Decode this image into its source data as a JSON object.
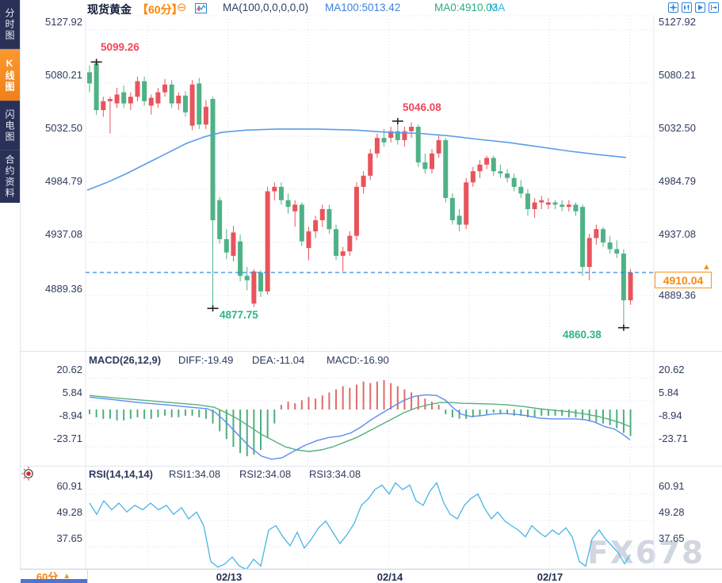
{
  "sidebar": {
    "items": [
      {
        "label": "分时图",
        "active": false
      },
      {
        "label": "K线图",
        "active": true
      },
      {
        "label": "闪电图",
        "active": false
      },
      {
        "label": "合约资料",
        "active": false
      }
    ]
  },
  "header": {
    "symbol": "现货黄金",
    "period": "【60分】",
    "collapse_icon": "⊖",
    "ma_settings": "MA(100,0,0,0,0,0)",
    "ma100": "MA100:5013.42",
    "ma0": "MA0:4910.03",
    "ma_extra": "MA"
  },
  "main_chart": {
    "axis": [
      "5127.92",
      "5080.21",
      "5032.50",
      "4984.79",
      "4937.08",
      "4889.36"
    ],
    "current_price": "4910.04",
    "tag_arrow": "▲"
  },
  "macd_panel": {
    "title": "MACD(26,12,9)",
    "diff": "DIFF:-19.49",
    "dea": "DEA:-11.04",
    "macd": "MACD:-16.90",
    "axis": [
      "20.62",
      "5.84",
      "-8.94",
      "-23.71"
    ]
  },
  "rsi_panel": {
    "title": "RSI(14,14,14)",
    "rsi1": "RSI1:34.08",
    "rsi2": "RSI2:34.08",
    "rsi3": "RSI3:34.08",
    "axis": [
      "60.91",
      "49.28",
      "37.65"
    ]
  },
  "bottom": {
    "period": "60分",
    "arrow": "▲",
    "dates": [
      "02/13",
      "02/14",
      "02/17"
    ]
  },
  "watermark": "FX678",
  "colors": {
    "up": "#e8545c",
    "down": "#4fb286",
    "ma_line": "#5b9cea",
    "diff_line": "#5b8cf0",
    "dea_line": "#53b27c",
    "rsi_line": "#49b4e6",
    "hist_pos": "#e06a6a",
    "hist_neg": "#4fae7e",
    "dashed_price_line": "#2f88e0",
    "accent_orange": "#f7941d"
  },
  "chart_data": {
    "type": "candlestick",
    "title": "现货黄金 60分",
    "price_axis_ticks": [
      5127.92,
      5080.21,
      5032.5,
      4984.79,
      4937.08,
      4889.36
    ],
    "current_price": 4910.04,
    "ma100_current": 5013.42,
    "ma0_current": 4910.03,
    "x_dates": [
      "02/13",
      "02/14",
      "02/17"
    ],
    "annotations": [
      {
        "label": "5099.26",
        "price": 5099.26,
        "candle": 1,
        "color": "#f2465a"
      },
      {
        "label": "5046.08",
        "price": 5046.08,
        "candle": 45,
        "color": "#f2465a"
      },
      {
        "label": "4877.75",
        "price": 4877.75,
        "candle": 18,
        "color": "#2fb487"
      },
      {
        "label": "4860.38",
        "price": 4860.38,
        "candle": 78,
        "color": "#2fb487"
      }
    ],
    "candles_ohlc": [
      [
        5090,
        5096,
        5072,
        5080
      ],
      [
        5098,
        5099.26,
        5052,
        5056
      ],
      [
        5056,
        5068,
        5050,
        5064
      ],
      [
        5064,
        5068,
        5035,
        5066
      ],
      [
        5062,
        5076,
        5058,
        5070
      ],
      [
        5072,
        5078,
        5058,
        5062
      ],
      [
        5062,
        5072,
        5056,
        5068
      ],
      [
        5068,
        5086,
        5064,
        5082
      ],
      [
        5082,
        5086,
        5060,
        5064
      ],
      [
        5060,
        5070,
        5052,
        5067
      ],
      [
        5062,
        5076,
        5058,
        5072
      ],
      [
        5072,
        5084,
        5068,
        5079
      ],
      [
        5079,
        5083,
        5058,
        5062
      ],
      [
        5062,
        5072,
        5056,
        5069
      ],
      [
        5069,
        5073,
        5050,
        5054
      ],
      [
        5042,
        5083,
        5038,
        5079
      ],
      [
        5080,
        5085,
        5039,
        5043
      ],
      [
        5043,
        5065,
        5039,
        5059
      ],
      [
        5066,
        5068,
        4877.75,
        4957
      ],
      [
        4975,
        4978,
        4936,
        4940
      ],
      [
        4940,
        4949,
        4922,
        4928
      ],
      [
        4925,
        4952,
        4920,
        4946
      ],
      [
        4938,
        4944,
        4902,
        4907
      ],
      [
        4907,
        4915,
        4894,
        4903
      ],
      [
        4882,
        4913,
        4879,
        4911
      ],
      [
        4910,
        4912,
        4888,
        4893
      ],
      [
        4893,
        4987,
        4890,
        4983
      ],
      [
        4983,
        4991,
        4975,
        4987
      ],
      [
        4987,
        4991,
        4971,
        4975
      ],
      [
        4975,
        4981,
        4963,
        4969
      ],
      [
        4965,
        4975,
        4951,
        4971
      ],
      [
        4971,
        4973,
        4934,
        4938
      ],
      [
        4932,
        4951,
        4921,
        4947
      ],
      [
        4947,
        4961,
        4941,
        4957
      ],
      [
        4957,
        4971,
        4951,
        4967
      ],
      [
        4967,
        4971,
        4945,
        4949
      ],
      [
        4949,
        4953,
        4921,
        4925
      ],
      [
        4925,
        4933,
        4911,
        4929
      ],
      [
        4929,
        4947,
        4925,
        4943
      ],
      [
        4943,
        4991,
        4939,
        4987
      ],
      [
        4987,
        5001,
        4981,
        4997
      ],
      [
        4997,
        5021,
        4993,
        5017
      ],
      [
        5017,
        5035,
        5013,
        5031
      ],
      [
        5031,
        5039,
        5023,
        5027
      ],
      [
        5031,
        5041,
        5027,
        5037
      ],
      [
        5037,
        5046.08,
        5025,
        5029
      ],
      [
        5029,
        5041,
        5023,
        5037
      ],
      [
        5037,
        5045,
        5031,
        5041
      ],
      [
        5041,
        5043,
        5005,
        5009
      ],
      [
        5009,
        5017,
        4999,
        5003
      ],
      [
        5003,
        5021,
        4999,
        5017
      ],
      [
        5017,
        5033,
        5013,
        5029
      ],
      [
        5029,
        5031,
        4973,
        4977
      ],
      [
        4977,
        4981,
        4953,
        4957
      ],
      [
        4961,
        4967,
        4947,
        4953
      ],
      [
        4953,
        4995,
        4949,
        4991
      ],
      [
        4991,
        5005,
        4987,
        5001
      ],
      [
        5001,
        5011,
        4995,
        5007
      ],
      [
        5007,
        5015,
        5003,
        5013
      ],
      [
        5013,
        5015,
        4997,
        5001
      ],
      [
        5001,
        5007,
        4995,
        4999
      ],
      [
        4999,
        5003,
        4991,
        4995
      ],
      [
        4995,
        4999,
        4983,
        4987
      ],
      [
        4987,
        4993,
        4977,
        4981
      ],
      [
        4981,
        4985,
        4961,
        4967
      ],
      [
        4967,
        4977,
        4959,
        4973
      ],
      [
        4973,
        4979,
        4967,
        4975
      ],
      [
        4971,
        4977,
        4967,
        4973
      ],
      [
        4973,
        4975,
        4967,
        4971
      ],
      [
        4971,
        4975,
        4965,
        4969
      ],
      [
        4969,
        4975,
        4965,
        4971
      ],
      [
        4971,
        4973,
        4961,
        4965
      ],
      [
        4969,
        4971,
        4907,
        4915
      ],
      [
        4915,
        4945,
        4903,
        4941
      ],
      [
        4941,
        4953,
        4935,
        4949
      ],
      [
        4949,
        4951,
        4933,
        4937
      ],
      [
        4937,
        4943,
        4927,
        4931
      ],
      [
        4931,
        4939,
        4923,
        4927
      ],
      [
        4927,
        4931,
        4860.38,
        4885
      ],
      [
        4885,
        4913,
        4881,
        4910.04
      ]
    ],
    "ma100_points": [
      [
        110,
        4984
      ],
      [
        135,
        4991
      ],
      [
        160,
        4999
      ],
      [
        185,
        5008
      ],
      [
        210,
        5017
      ],
      [
        235,
        5026
      ],
      [
        258,
        5032
      ],
      [
        280,
        5036
      ],
      [
        310,
        5038
      ],
      [
        350,
        5039
      ],
      [
        400,
        5039
      ],
      [
        450,
        5038
      ],
      [
        490,
        5036
      ],
      [
        530,
        5035
      ],
      [
        565,
        5033
      ],
      [
        600,
        5030
      ],
      [
        640,
        5027
      ],
      [
        680,
        5023
      ],
      [
        720,
        5019
      ],
      [
        755,
        5016
      ],
      [
        790,
        5013.4
      ]
    ],
    "macd": {
      "axis_ticks": [
        20.62,
        5.84,
        -8.94,
        -23.71
      ],
      "diff_current": -19.49,
      "dea_current": -11.04,
      "macd_current": -16.9,
      "histogram": [
        -3,
        -5,
        -6,
        -6,
        -7,
        -7,
        -6,
        -5,
        -6,
        -6,
        -5,
        -4,
        -5,
        -5,
        -4,
        -4,
        -5,
        -6,
        -9,
        -14,
        -19,
        -24,
        -28,
        -30,
        -29,
        -26,
        -18,
        -9,
        3,
        5,
        4,
        6,
        8,
        7,
        9,
        11,
        13,
        15,
        14,
        16,
        18,
        17,
        18,
        19,
        17,
        15,
        13,
        11,
        9,
        7,
        5,
        3,
        -3,
        -5,
        -6,
        -6,
        -5,
        -4,
        -3,
        -2,
        -3,
        -3,
        -4,
        -4,
        -5,
        -5,
        -4,
        -4,
        -4,
        -4,
        -5,
        -5,
        -6,
        -7,
        -8,
        -9,
        -10,
        -12,
        -15,
        -17
      ],
      "diff_points": [
        [
          113,
          8
        ],
        [
          140,
          6.5
        ],
        [
          175,
          4.5
        ],
        [
          210,
          3
        ],
        [
          240,
          1.5
        ],
        [
          262,
          0.5
        ],
        [
          272,
          -2
        ],
        [
          285,
          -8
        ],
        [
          300,
          -16
        ],
        [
          315,
          -24
        ],
        [
          330,
          -30
        ],
        [
          343,
          -32
        ],
        [
          356,
          -31
        ],
        [
          370,
          -27
        ],
        [
          385,
          -23
        ],
        [
          400,
          -20
        ],
        [
          415,
          -18
        ],
        [
          430,
          -17
        ],
        [
          443,
          -15
        ],
        [
          456,
          -11
        ],
        [
          470,
          -6
        ],
        [
          483,
          -2
        ],
        [
          496,
          2
        ],
        [
          510,
          6
        ],
        [
          523,
          8.5
        ],
        [
          537,
          9.5
        ],
        [
          551,
          9
        ],
        [
          562,
          6
        ],
        [
          572,
          1
        ],
        [
          582,
          -3
        ],
        [
          594,
          -4.5
        ],
        [
          607,
          -4
        ],
        [
          620,
          -3
        ],
        [
          635,
          -2.5
        ],
        [
          650,
          -3
        ],
        [
          665,
          -4
        ],
        [
          680,
          -5.5
        ],
        [
          695,
          -6
        ],
        [
          710,
          -6
        ],
        [
          725,
          -6
        ],
        [
          738,
          -6.5
        ],
        [
          750,
          -8
        ],
        [
          763,
          -11
        ],
        [
          775,
          -12.5
        ],
        [
          786,
          -16
        ],
        [
          795,
          -19.5
        ]
      ],
      "dea_points": [
        [
          113,
          9
        ],
        [
          145,
          7.5
        ],
        [
          180,
          6
        ],
        [
          215,
          4.5
        ],
        [
          250,
          3
        ],
        [
          270,
          1.5
        ],
        [
          285,
          -2
        ],
        [
          300,
          -6
        ],
        [
          315,
          -11
        ],
        [
          330,
          -16
        ],
        [
          345,
          -20
        ],
        [
          360,
          -24
        ],
        [
          375,
          -26
        ],
        [
          390,
          -27
        ],
        [
          405,
          -26
        ],
        [
          420,
          -24
        ],
        [
          435,
          -21
        ],
        [
          450,
          -18
        ],
        [
          465,
          -14
        ],
        [
          480,
          -10
        ],
        [
          495,
          -6
        ],
        [
          510,
          -2
        ],
        [
          525,
          1
        ],
        [
          540,
          3
        ],
        [
          555,
          4.5
        ],
        [
          570,
          4.5
        ],
        [
          585,
          4
        ],
        [
          600,
          3.8
        ],
        [
          620,
          3.5
        ],
        [
          640,
          3
        ],
        [
          660,
          2
        ],
        [
          680,
          0.5
        ],
        [
          700,
          -0.5
        ],
        [
          720,
          -1.5
        ],
        [
          740,
          -3
        ],
        [
          755,
          -4.5
        ],
        [
          770,
          -6.5
        ],
        [
          783,
          -8.5
        ],
        [
          795,
          -11
        ]
      ]
    },
    "rsi": {
      "axis_ticks": [
        60.91,
        49.28,
        37.65
      ],
      "rsi1_current": 34.08,
      "rsi2_current": 34.08,
      "rsi3_current": 34.08,
      "points": [
        [
          113,
          57
        ],
        [
          122,
          52
        ],
        [
          131,
          58
        ],
        [
          141,
          54
        ],
        [
          150,
          57
        ],
        [
          160,
          53
        ],
        [
          170,
          56
        ],
        [
          180,
          54
        ],
        [
          190,
          57
        ],
        [
          200,
          54
        ],
        [
          210,
          56
        ],
        [
          219,
          52
        ],
        [
          229,
          55
        ],
        [
          238,
          50
        ],
        [
          248,
          53
        ],
        [
          257,
          47
        ],
        [
          266,
          31
        ],
        [
          275,
          28.5
        ],
        [
          284,
          30
        ],
        [
          293,
          33
        ],
        [
          302,
          29
        ],
        [
          311,
          27.5
        ],
        [
          320,
          32
        ],
        [
          329,
          29
        ],
        [
          339,
          45
        ],
        [
          348,
          47
        ],
        [
          357,
          42
        ],
        [
          366,
          38
        ],
        [
          375,
          44
        ],
        [
          384,
          37
        ],
        [
          393,
          41
        ],
        [
          402,
          46
        ],
        [
          411,
          49
        ],
        [
          420,
          44
        ],
        [
          429,
          39
        ],
        [
          438,
          43
        ],
        [
          447,
          48
        ],
        [
          456,
          56
        ],
        [
          465,
          59
        ],
        [
          473,
          63
        ],
        [
          482,
          65
        ],
        [
          491,
          61
        ],
        [
          499,
          66
        ],
        [
          508,
          63
        ],
        [
          517,
          65
        ],
        [
          525,
          58
        ],
        [
          534,
          56
        ],
        [
          542,
          62
        ],
        [
          551,
          66
        ],
        [
          560,
          57
        ],
        [
          568,
          52
        ],
        [
          577,
          50
        ],
        [
          586,
          56
        ],
        [
          594,
          59
        ],
        [
          603,
          61
        ],
        [
          611,
          55
        ],
        [
          620,
          50
        ],
        [
          628,
          53
        ],
        [
          637,
          49
        ],
        [
          645,
          47
        ],
        [
          654,
          45
        ],
        [
          663,
          42
        ],
        [
          671,
          47
        ],
        [
          680,
          44
        ],
        [
          688,
          42
        ],
        [
          697,
          45
        ],
        [
          705,
          43
        ],
        [
          714,
          46
        ],
        [
          722,
          42
        ],
        [
          731,
          31
        ],
        [
          739,
          29
        ],
        [
          747,
          41
        ],
        [
          756,
          45
        ],
        [
          764,
          41
        ],
        [
          772,
          38
        ],
        [
          780,
          35
        ],
        [
          788,
          30
        ],
        [
          795,
          34
        ]
      ]
    }
  }
}
